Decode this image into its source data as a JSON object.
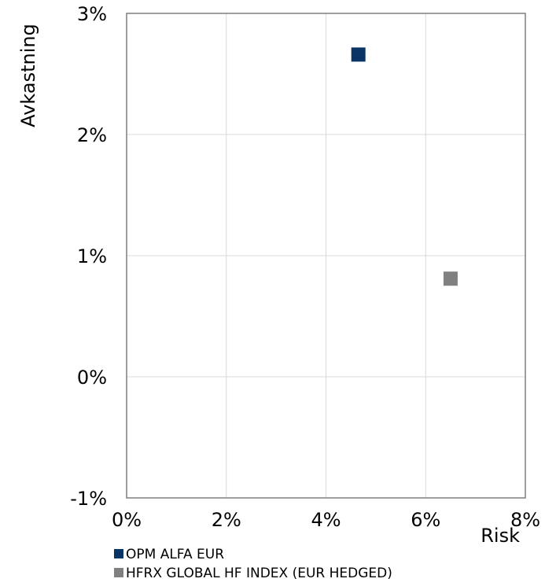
{
  "chart_data": {
    "type": "scatter",
    "title": "",
    "xlabel": "Risk",
    "ylabel": "Avkastning",
    "xlim": [
      0,
      8
    ],
    "ylim": [
      -1,
      3
    ],
    "x_ticks": [
      "0%",
      "2%",
      "4%",
      "6%",
      "8%"
    ],
    "x_tick_values": [
      0,
      2,
      4,
      6,
      8
    ],
    "y_ticks": [
      "-1%",
      "0%",
      "1%",
      "2%",
      "3%"
    ],
    "y_tick_values": [
      -1,
      0,
      1,
      2,
      3
    ],
    "grid": true,
    "legend_position": "bottom-left",
    "series": [
      {
        "name": "OPM ALFA EUR",
        "color": "#0a3466",
        "marker": "square",
        "x": [
          4.65
        ],
        "y": [
          2.66
        ]
      },
      {
        "name": "HFRX GLOBAL HF INDEX (EUR HEDGED)",
        "color": "#808080",
        "marker": "square",
        "x": [
          6.5
        ],
        "y": [
          0.81
        ]
      }
    ]
  }
}
